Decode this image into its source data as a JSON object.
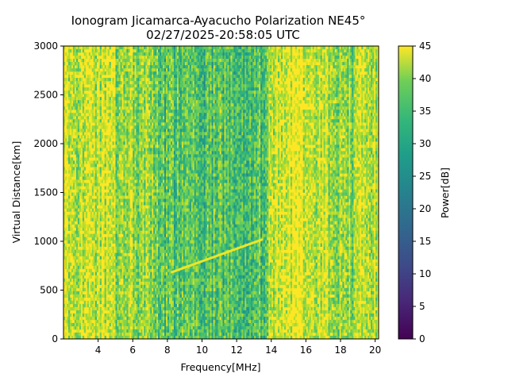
{
  "chart_data": {
    "type": "heatmap",
    "title_line1": "Ionogram Jicamarca-Ayacucho Polarization NE45°",
    "title_line2": "02/27/2025-20:58:05 UTC",
    "xlabel": "Frequency[MHz]",
    "ylabel": "Virtual Distance[km]",
    "xlim": [
      2.0,
      20.2
    ],
    "ylim": [
      0,
      3000
    ],
    "xticks": [
      "4",
      "6",
      "8",
      "10",
      "12",
      "14",
      "16",
      "18",
      "20"
    ],
    "yticks": [
      "0",
      "500",
      "1000",
      "1500",
      "2000",
      "2500",
      "3000"
    ],
    "colorbar": {
      "label": "Power[dB]",
      "range": [
        0,
        45
      ],
      "ticks": [
        "0",
        "5",
        "10",
        "15",
        "20",
        "25",
        "30",
        "35",
        "40",
        "45"
      ],
      "colormap": "viridis"
    },
    "echo_trace": {
      "description_freq_MHz": [
        8.2,
        13.5
      ],
      "description_dist_km": [
        680,
        1020
      ]
    },
    "grid": false
  },
  "colors": {
    "viridis_low": "#440154",
    "viridis_mid": "#21918c",
    "viridis_high": "#fde725"
  }
}
